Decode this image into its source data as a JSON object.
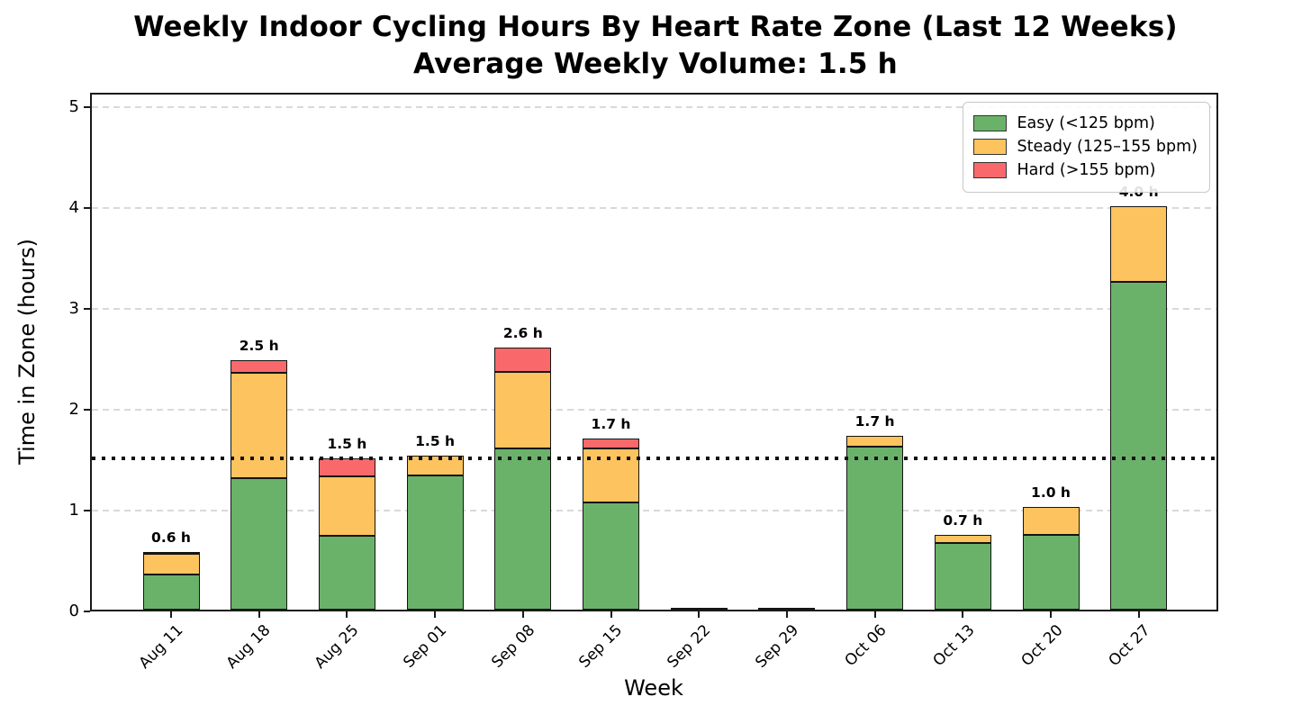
{
  "title": "Weekly Indoor Cycling Hours By Heart Rate Zone (Last 12 Weeks)",
  "subtitle": "Average Weekly Volume: 1.5 h",
  "chart_data": {
    "type": "bar",
    "stacked": true,
    "title": "Weekly Indoor Cycling Hours By Heart Rate Zone (Last 12 Weeks)",
    "subtitle": "Average Weekly Volume: 1.5 h",
    "xlabel": "Week",
    "ylabel": "Time in Zone (hours)",
    "categories": [
      "Aug 11",
      "Aug 18",
      "Aug 25",
      "Sep 01",
      "Sep 08",
      "Sep 15",
      "Sep 22",
      "Sep 29",
      "Oct 06",
      "Oct 13",
      "Oct 20",
      "Oct 27"
    ],
    "series": [
      {
        "name": "Easy (<125 bpm)",
        "color": "#6ab26a",
        "values": [
          0.35,
          1.3,
          0.73,
          1.33,
          1.6,
          1.06,
          0.01,
          0.01,
          1.62,
          0.66,
          0.74,
          3.25
        ]
      },
      {
        "name": "Steady (125–155 bpm)",
        "color": "#fcc35e",
        "values": [
          0.2,
          1.05,
          0.59,
          0.2,
          0.76,
          0.54,
          0.0,
          0.0,
          0.1,
          0.08,
          0.28,
          0.75
        ]
      },
      {
        "name": "Hard (>155 bpm)",
        "color": "#f9696b",
        "values": [
          0.02,
          0.12,
          0.18,
          0.0,
          0.24,
          0.1,
          0.0,
          0.0,
          0.0,
          0.0,
          0.0,
          0.0
        ]
      }
    ],
    "bar_total_labels": [
      "0.6 h",
      "2.5 h",
      "1.5 h",
      "1.5 h",
      "2.6 h",
      "1.7 h",
      "",
      "",
      "1.7 h",
      "0.7 h",
      "1.0 h",
      "4.0 h"
    ],
    "average_line": {
      "value": 1.5,
      "label_in_subtitle": "1.5 h",
      "style": "dotted",
      "color": "#111111"
    },
    "yticks": [
      "0",
      "1",
      "2",
      "3",
      "4",
      "5"
    ],
    "ylim": [
      0,
      5.14
    ],
    "grid": "horizontal-dashed",
    "legend_position": "upper-right",
    "bar_edge_color": "#141414",
    "grid_color": "#d9d9d9"
  }
}
